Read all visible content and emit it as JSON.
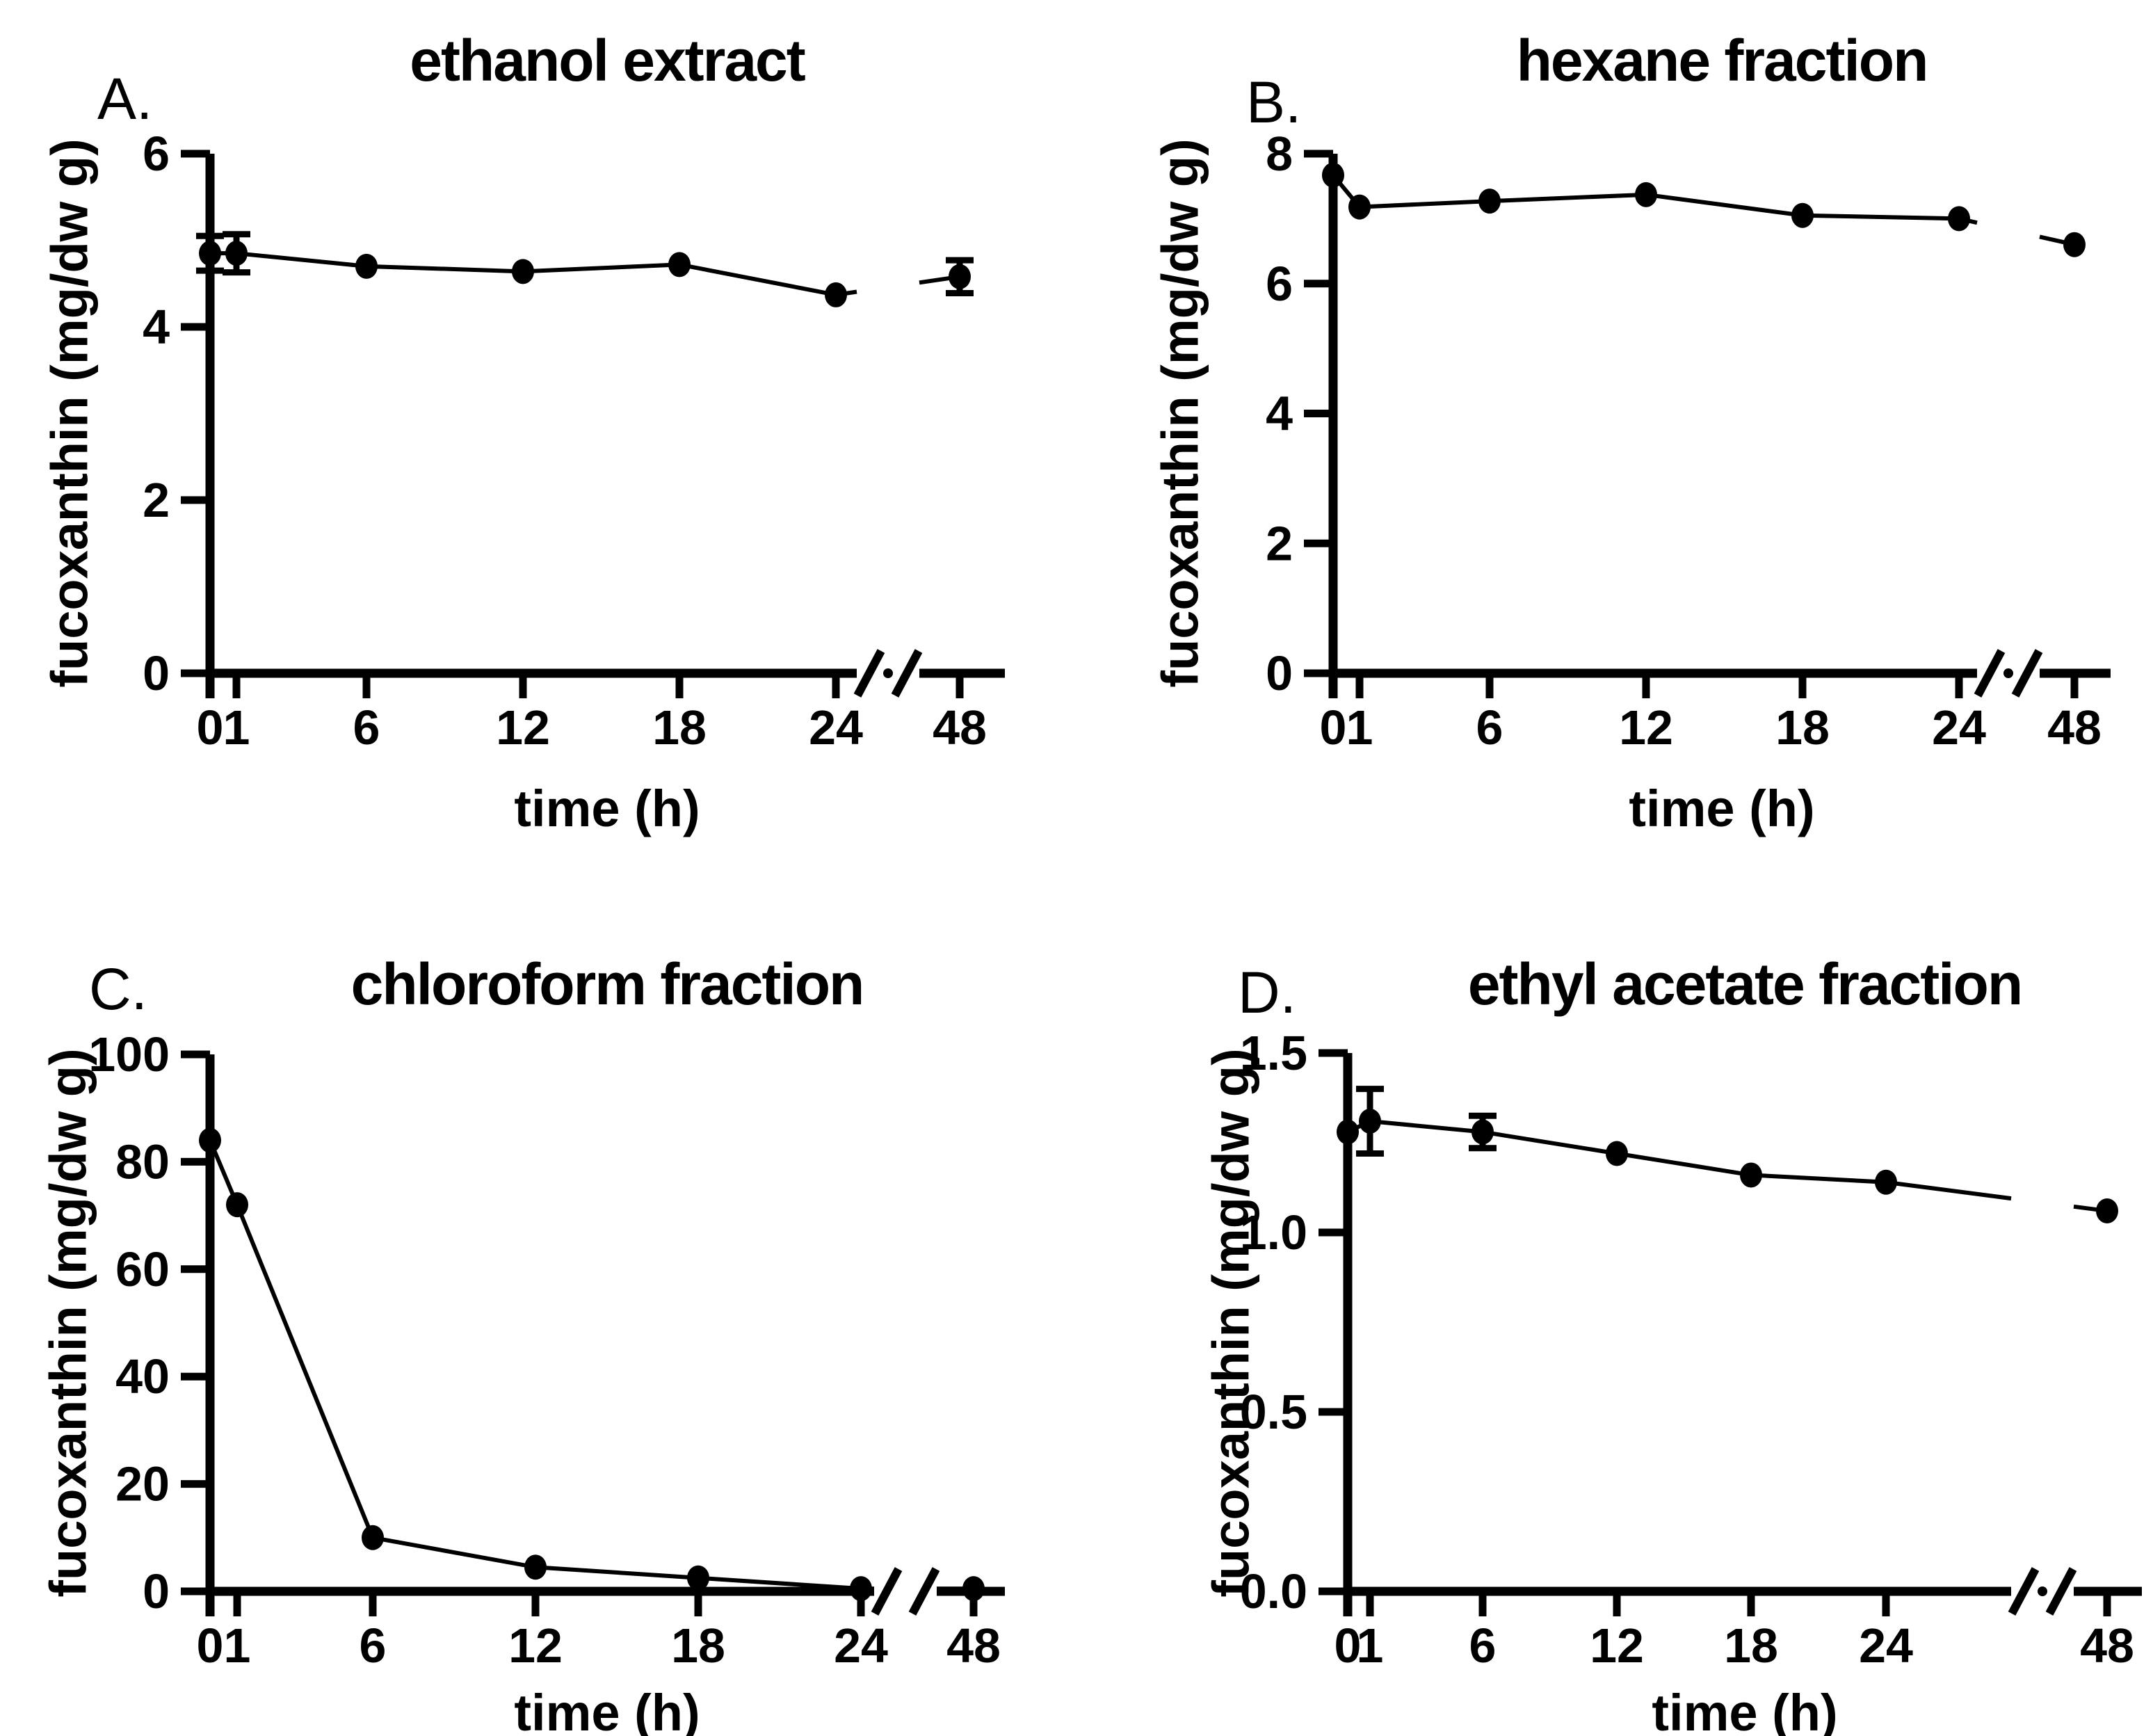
{
  "figure": {
    "background": "#ffffff",
    "ink": "#000000"
  },
  "chart_data": [
    {
      "panel_label": "A.",
      "title": "ethanol extract",
      "type": "line",
      "xlabel": "time (h)",
      "ylabel": "fucoxanthin (mg/dw g)",
      "x": [
        0,
        1,
        6,
        12,
        18,
        24,
        48
      ],
      "x_tick_labels": [
        "0",
        "1",
        "6",
        "12",
        "18",
        "24",
        "48"
      ],
      "x_axis_break_between": [
        24,
        48
      ],
      "y_ticks": [
        0,
        2,
        4,
        6
      ],
      "y_tick_labels": [
        "0",
        "2",
        "4",
        "6"
      ],
      "ylim": [
        0,
        6
      ],
      "grid": false,
      "legend": "none",
      "marker": "filled-circle",
      "color": "#000000",
      "series": [
        {
          "name": "ethanol extract",
          "values": [
            4.85,
            4.85,
            4.7,
            4.64,
            4.72,
            4.37,
            4.58
          ],
          "errors": [
            0.2,
            0.22,
            0,
            0,
            0,
            0,
            0.19
          ]
        }
      ]
    },
    {
      "panel_label": "B.",
      "title": "hexane fraction",
      "type": "line",
      "xlabel": "time (h)",
      "ylabel": "fucoxanthin (mg/dw g)",
      "x": [
        0,
        1,
        6,
        12,
        18,
        24,
        48
      ],
      "x_tick_labels": [
        "0",
        "1",
        "6",
        "12",
        "18",
        "24",
        "48"
      ],
      "x_axis_break_between": [
        24,
        48
      ],
      "y_ticks": [
        0,
        2,
        4,
        6,
        8
      ],
      "y_tick_labels": [
        "0",
        "2",
        "4",
        "6",
        "8"
      ],
      "ylim": [
        0,
        8
      ],
      "grid": false,
      "legend": "none",
      "marker": "filled-circle",
      "color": "#000000",
      "series": [
        {
          "name": "hexane fraction",
          "values": [
            7.67,
            7.18,
            7.27,
            7.37,
            7.05,
            7.0,
            6.6
          ],
          "errors": [
            0,
            0,
            0,
            0,
            0,
            0,
            0
          ]
        }
      ]
    },
    {
      "panel_label": "C.",
      "title": "chloroform fraction",
      "type": "line",
      "xlabel": "time (h)",
      "ylabel": "fucoxanthin (mg/dw g)",
      "x": [
        0,
        1,
        6,
        12,
        18,
        24,
        48
      ],
      "x_tick_labels": [
        "0",
        "1",
        "6",
        "12",
        "18",
        "24",
        "48"
      ],
      "x_axis_break_between": [
        24,
        48
      ],
      "y_ticks": [
        0,
        20,
        40,
        60,
        80,
        100
      ],
      "y_tick_labels": [
        "0",
        "20",
        "40",
        "60",
        "80",
        "100"
      ],
      "ylim": [
        0,
        100
      ],
      "grid": false,
      "legend": "none",
      "marker": "filled-circle",
      "color": "#000000",
      "series": [
        {
          "name": "chloroform fraction",
          "values": [
            84,
            72,
            10,
            4.5,
            2.5,
            0.5,
            0.5
          ],
          "errors": [
            0,
            0,
            0,
            0,
            0,
            0,
            0
          ]
        }
      ]
    },
    {
      "panel_label": "D.",
      "title": "ethyl acetate fraction",
      "type": "line",
      "xlabel": "time (h)",
      "ylabel": "fucoxanthin (mg/dw g)",
      "x": [
        0,
        1,
        6,
        12,
        18,
        24,
        48
      ],
      "x_tick_labels": [
        "0",
        "1",
        "6",
        "12",
        "18",
        "24",
        "48"
      ],
      "x_axis_break_between": [
        24,
        48
      ],
      "y_ticks": [
        0,
        0.5,
        1.0,
        1.5
      ],
      "y_tick_labels": [
        "0.0",
        "0.5",
        "1.0",
        "1.5"
      ],
      "ylim": [
        0,
        1.5
      ],
      "grid": false,
      "legend": "none",
      "marker": "filled-circle",
      "color": "#000000",
      "series": [
        {
          "name": "ethyl acetate fraction",
          "values": [
            1.28,
            1.31,
            1.28,
            1.22,
            1.16,
            1.14,
            1.06
          ],
          "errors": [
            0,
            0.09,
            0.045,
            0,
            0,
            0,
            0
          ]
        }
      ]
    }
  ]
}
